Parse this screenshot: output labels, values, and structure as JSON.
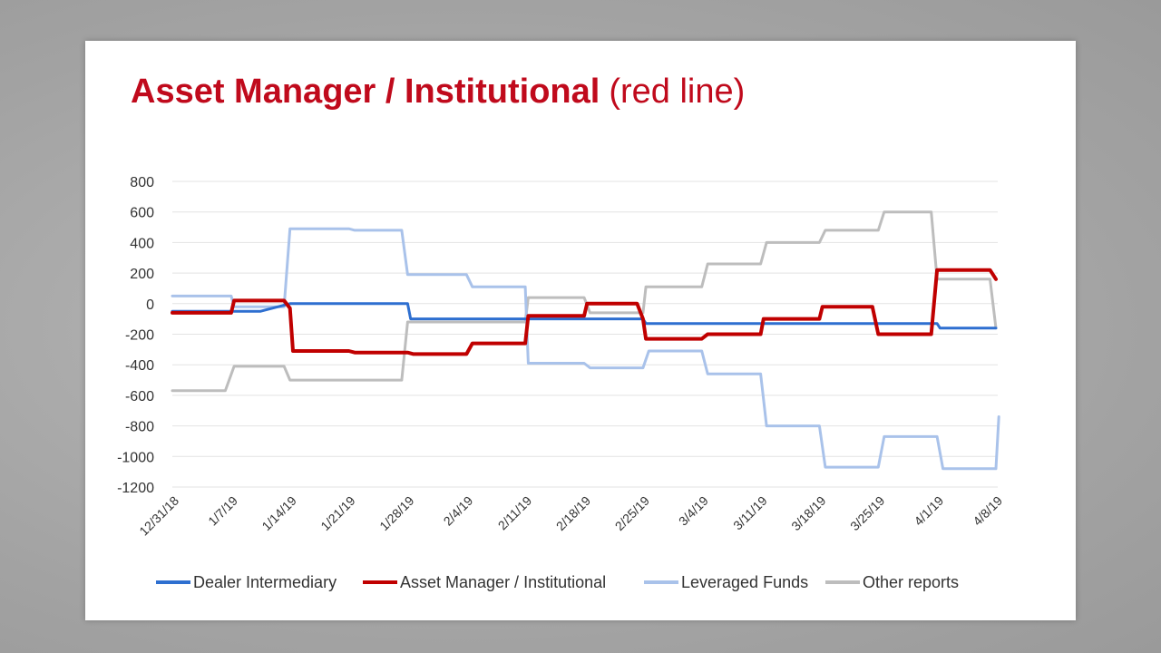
{
  "slide": {
    "title_main": "Asset Manager / Institutional",
    "title_sub": "(red line)"
  },
  "chart_data": {
    "type": "line",
    "title": "",
    "xlabel": "",
    "ylabel": "",
    "ylim": [
      -1200,
      800
    ],
    "yticks": [
      800,
      600,
      400,
      200,
      0,
      -200,
      -400,
      -600,
      -800,
      -1000,
      -1200
    ],
    "grid": true,
    "legend_position": "bottom",
    "categories": [
      "12/31/18",
      "1/7/19",
      "1/14/19",
      "1/21/19",
      "1/28/19",
      "2/4/19",
      "2/11/19",
      "2/18/19",
      "2/25/19",
      "3/4/19",
      "3/11/19",
      "3/18/19",
      "3/25/19",
      "4/1/19",
      "4/8/19"
    ],
    "x_range": [
      0,
      14
    ],
    "series": [
      {
        "name": "Dealer Intermediary",
        "color": "#2e6fd0",
        "points": [
          [
            0,
            -50
          ],
          [
            1,
            -50
          ],
          [
            1.5,
            -50
          ],
          [
            2,
            0
          ],
          [
            3,
            0
          ],
          [
            4,
            0
          ],
          [
            4.05,
            -100
          ],
          [
            5,
            -100
          ],
          [
            6,
            -100
          ],
          [
            7,
            -100
          ],
          [
            8,
            -100
          ],
          [
            8.05,
            -130
          ],
          [
            9,
            -130
          ],
          [
            10,
            -130
          ],
          [
            11,
            -130
          ],
          [
            12,
            -130
          ],
          [
            13,
            -130
          ],
          [
            13.05,
            -160
          ],
          [
            14,
            -160
          ]
        ]
      },
      {
        "name": "Asset Manager / Institutional",
        "color": "#c00000",
        "points": [
          [
            0,
            -60
          ],
          [
            1,
            -60
          ],
          [
            1.05,
            20
          ],
          [
            1.9,
            20
          ],
          [
            2,
            -30
          ],
          [
            2.05,
            -310
          ],
          [
            3,
            -310
          ],
          [
            3.1,
            -320
          ],
          [
            4,
            -320
          ],
          [
            4.1,
            -330
          ],
          [
            5,
            -330
          ],
          [
            5.1,
            -260
          ],
          [
            6,
            -260
          ],
          [
            6.05,
            -80
          ],
          [
            7,
            -80
          ],
          [
            7.05,
            0
          ],
          [
            7.9,
            0
          ],
          [
            8,
            -100
          ],
          [
            8.05,
            -230
          ],
          [
            9,
            -230
          ],
          [
            9.1,
            -200
          ],
          [
            10,
            -200
          ],
          [
            10.05,
            -100
          ],
          [
            11,
            -100
          ],
          [
            11.05,
            -20
          ],
          [
            11.9,
            -20
          ],
          [
            12,
            -200
          ],
          [
            12.9,
            -200
          ],
          [
            13,
            220
          ],
          [
            13.9,
            220
          ],
          [
            14,
            160
          ]
        ]
      },
      {
        "name": "Leveraged Funds",
        "color": "#a9c2ea",
        "points": [
          [
            0,
            50
          ],
          [
            1,
            50
          ],
          [
            1.05,
            -20
          ],
          [
            1.9,
            -20
          ],
          [
            2,
            490
          ],
          [
            3,
            490
          ],
          [
            3.1,
            480
          ],
          [
            3.9,
            480
          ],
          [
            4,
            190
          ],
          [
            5,
            190
          ],
          [
            5.1,
            110
          ],
          [
            6,
            110
          ],
          [
            6.05,
            -390
          ],
          [
            7,
            -390
          ],
          [
            7.1,
            -420
          ],
          [
            8,
            -420
          ],
          [
            8.1,
            -310
          ],
          [
            9,
            -310
          ],
          [
            9.1,
            -460
          ],
          [
            10,
            -460
          ],
          [
            10.1,
            -800
          ],
          [
            11,
            -800
          ],
          [
            11.1,
            -1070
          ],
          [
            12,
            -1070
          ],
          [
            12.1,
            -870
          ],
          [
            13,
            -870
          ],
          [
            13.1,
            -1080
          ],
          [
            14,
            -1080
          ],
          [
            14.05,
            -740
          ]
        ]
      },
      {
        "name": "Other reports",
        "color": "#bdbdbd",
        "points": [
          [
            0,
            -570
          ],
          [
            0.9,
            -570
          ],
          [
            1.05,
            -410
          ],
          [
            1.9,
            -410
          ],
          [
            2,
            -500
          ],
          [
            3,
            -500
          ],
          [
            3.9,
            -500
          ],
          [
            4,
            -120
          ],
          [
            5,
            -120
          ],
          [
            6,
            -120
          ],
          [
            6.05,
            40
          ],
          [
            7,
            40
          ],
          [
            7.1,
            -60
          ],
          [
            8,
            -60
          ],
          [
            8.05,
            110
          ],
          [
            9,
            110
          ],
          [
            9.1,
            260
          ],
          [
            10,
            260
          ],
          [
            10.1,
            400
          ],
          [
            11,
            400
          ],
          [
            11.1,
            480
          ],
          [
            12,
            480
          ],
          [
            12.1,
            600
          ],
          [
            12.9,
            600
          ],
          [
            13,
            160
          ],
          [
            13.9,
            160
          ],
          [
            14,
            -160
          ]
        ]
      }
    ]
  }
}
